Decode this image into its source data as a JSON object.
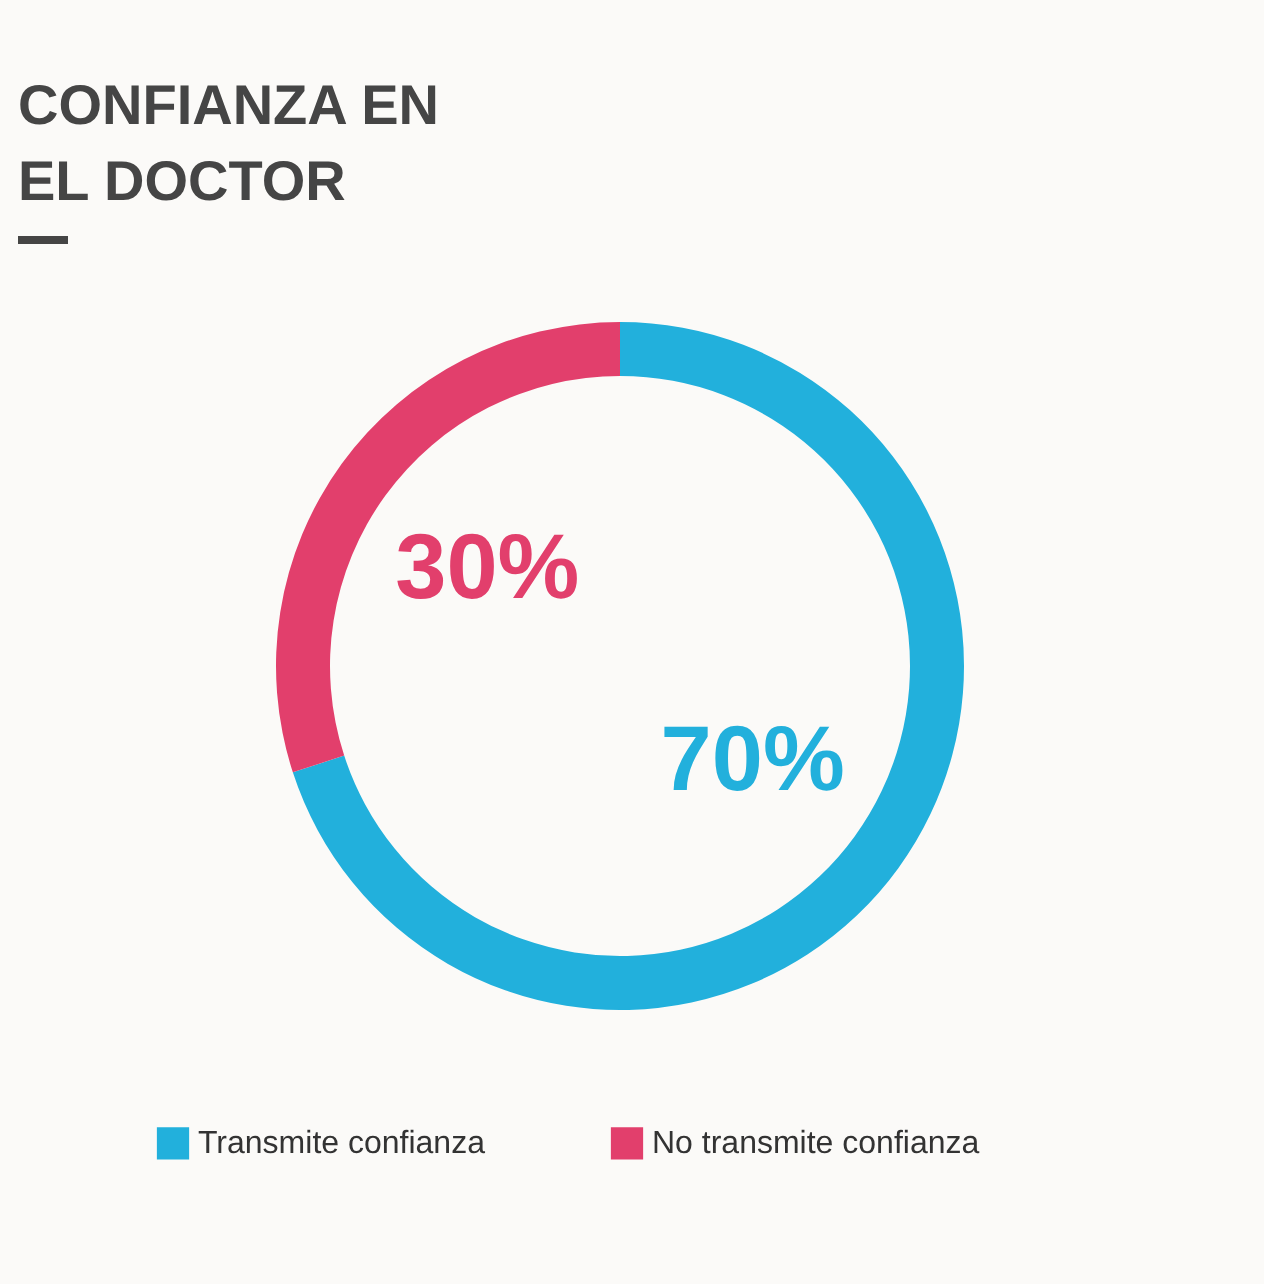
{
  "chart_data": {
    "type": "donut",
    "title": "CONFIANZA EN EL DOCTOR",
    "categories": [
      "Transmite confianza",
      "No transmite confianza"
    ],
    "values": [
      70,
      30
    ],
    "colors": [
      "#22b0dc",
      "#e23f6c"
    ],
    "value_labels": [
      "70%",
      "30%"
    ],
    "legend": "bottom"
  }
}
